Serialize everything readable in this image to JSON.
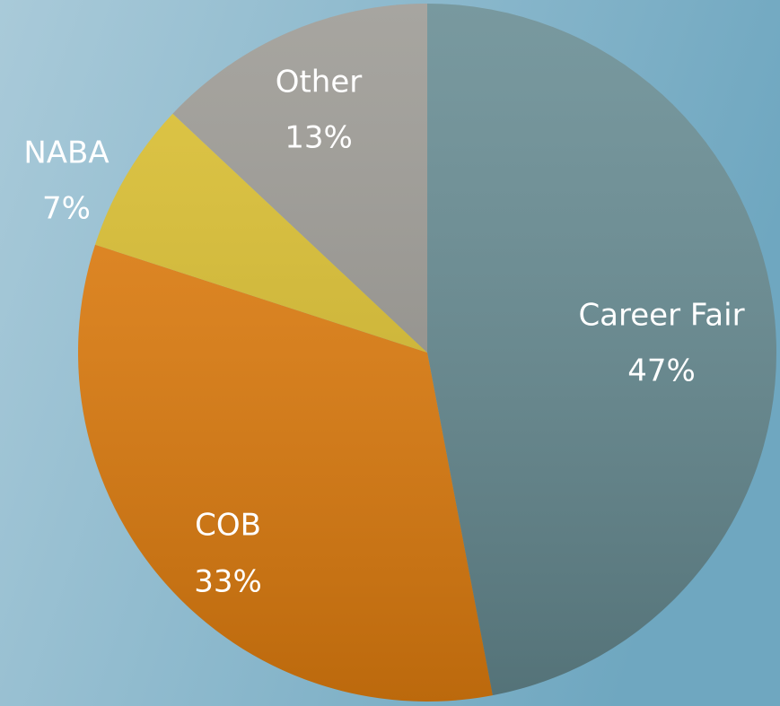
{
  "chart_data": {
    "type": "pie",
    "categories": [
      "Career Fair",
      "COB",
      "NABA",
      "Other"
    ],
    "values": [
      47,
      33,
      7,
      13
    ],
    "value_labels": [
      "47%",
      "33%",
      "7%",
      "13%"
    ],
    "colors": [
      "#668b92",
      "#e5800f",
      "#dcc02f",
      "#9b9993"
    ]
  }
}
